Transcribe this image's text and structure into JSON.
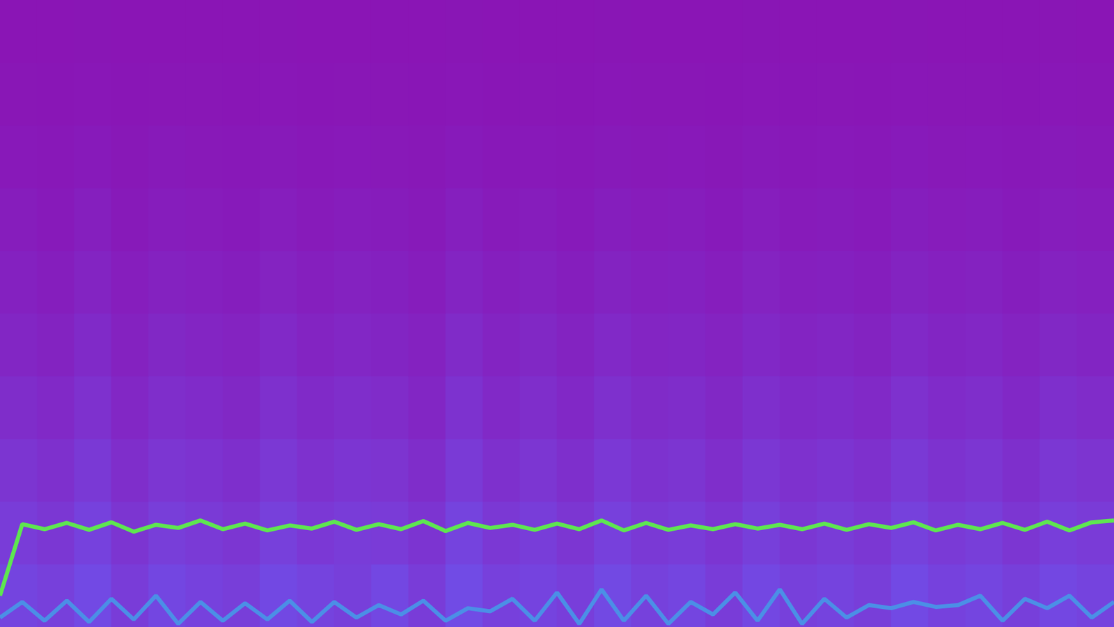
{
  "chart_data": {
    "type": "heatmap",
    "tick_labels": false,
    "grid": false,
    "xlim": [
      0,
      100
    ],
    "ylim": [
      0,
      100
    ],
    "intensity_range": [
      0,
      1
    ],
    "intensity": [
      [
        0.82,
        0.75,
        0.9,
        0.7,
        0.85,
        0.78,
        0.72,
        0.88,
        0.8,
        0.74,
        0.86,
        0.7,
        0.92,
        0.76,
        0.81,
        0.73,
        0.89,
        0.77,
        0.84,
        0.7,
        0.87,
        0.75,
        0.8,
        0.72,
        0.9,
        0.78,
        0.83,
        0.74,
        0.86,
        0.8
      ],
      [
        0.7,
        0.62,
        0.78,
        0.58,
        0.72,
        0.66,
        0.6,
        0.75,
        0.64,
        0.7,
        0.68,
        0.57,
        0.8,
        0.63,
        0.71,
        0.6,
        0.76,
        0.65,
        0.7,
        0.59,
        0.74,
        0.62,
        0.69,
        0.61,
        0.77,
        0.66,
        0.72,
        0.6,
        0.73,
        0.68
      ],
      [
        0.58,
        0.5,
        0.65,
        0.46,
        0.6,
        0.55,
        0.48,
        0.63,
        0.52,
        0.59,
        0.56,
        0.45,
        0.66,
        0.5,
        0.6,
        0.49,
        0.64,
        0.53,
        0.58,
        0.47,
        0.62,
        0.51,
        0.57,
        0.5,
        0.65,
        0.54,
        0.6,
        0.48,
        0.61,
        0.56
      ],
      [
        0.45,
        0.38,
        0.52,
        0.35,
        0.47,
        0.42,
        0.36,
        0.5,
        0.4,
        0.46,
        0.43,
        0.34,
        0.53,
        0.39,
        0.47,
        0.37,
        0.5,
        0.41,
        0.45,
        0.36,
        0.49,
        0.4,
        0.44,
        0.38,
        0.51,
        0.42,
        0.47,
        0.37,
        0.48,
        0.43
      ],
      [
        0.34,
        0.28,
        0.4,
        0.26,
        0.36,
        0.31,
        0.27,
        0.38,
        0.3,
        0.35,
        0.32,
        0.25,
        0.41,
        0.29,
        0.36,
        0.28,
        0.39,
        0.31,
        0.34,
        0.27,
        0.37,
        0.3,
        0.33,
        0.28,
        0.39,
        0.32,
        0.35,
        0.27,
        0.36,
        0.32
      ],
      [
        0.24,
        0.19,
        0.29,
        0.18,
        0.26,
        0.22,
        0.19,
        0.27,
        0.21,
        0.25,
        0.23,
        0.17,
        0.3,
        0.2,
        0.25,
        0.19,
        0.28,
        0.22,
        0.24,
        0.18,
        0.27,
        0.21,
        0.23,
        0.19,
        0.28,
        0.22,
        0.25,
        0.19,
        0.26,
        0.22
      ],
      [
        0.16,
        0.12,
        0.2,
        0.11,
        0.17,
        0.14,
        0.12,
        0.18,
        0.13,
        0.16,
        0.15,
        0.11,
        0.2,
        0.13,
        0.17,
        0.12,
        0.19,
        0.14,
        0.16,
        0.12,
        0.18,
        0.13,
        0.15,
        0.12,
        0.19,
        0.14,
        0.16,
        0.12,
        0.17,
        0.14
      ],
      [
        0.1,
        0.08,
        0.12,
        0.07,
        0.11,
        0.09,
        0.08,
        0.11,
        0.08,
        0.1,
        0.09,
        0.07,
        0.12,
        0.08,
        0.1,
        0.08,
        0.11,
        0.09,
        0.1,
        0.07,
        0.11,
        0.08,
        0.1,
        0.08,
        0.12,
        0.09,
        0.1,
        0.08,
        0.11,
        0.09
      ],
      [
        0.05,
        0.04,
        0.06,
        0.04,
        0.05,
        0.05,
        0.04,
        0.06,
        0.04,
        0.05,
        0.05,
        0.04,
        0.06,
        0.04,
        0.05,
        0.04,
        0.06,
        0.05,
        0.05,
        0.04,
        0.06,
        0.04,
        0.05,
        0.04,
        0.06,
        0.05,
        0.05,
        0.04,
        0.06,
        0.05
      ],
      [
        0.02,
        0.02,
        0.03,
        0.02,
        0.02,
        0.02,
        0.02,
        0.03,
        0.02,
        0.02,
        0.02,
        0.02,
        0.03,
        0.02,
        0.02,
        0.02,
        0.03,
        0.02,
        0.02,
        0.02,
        0.03,
        0.02,
        0.02,
        0.02,
        0.03,
        0.02,
        0.02,
        0.02,
        0.03,
        0.02
      ]
    ],
    "x": [
      0,
      2,
      4,
      6,
      8,
      10,
      12,
      14,
      16,
      18,
      20,
      22,
      24,
      26,
      28,
      30,
      32,
      34,
      36,
      38,
      40,
      42,
      44,
      46,
      48,
      50,
      52,
      54,
      56,
      58,
      60,
      62,
      64,
      66,
      68,
      70,
      72,
      74,
      76,
      78,
      80,
      82,
      84,
      86,
      88,
      90,
      92,
      94,
      96,
      98,
      100
    ],
    "series": [
      {
        "type": "line",
        "color": "#5ee650",
        "marker": "none",
        "line_style": "solid",
        "values": [
          5,
          16.4,
          15.6,
          16.6,
          15.5,
          16.7,
          15.2,
          16.3,
          15.8,
          17.0,
          15.6,
          16.5,
          15.4,
          16.2,
          15.7,
          16.8,
          15.5,
          16.4,
          15.6,
          16.9,
          15.3,
          16.6,
          15.8,
          16.3,
          15.5,
          16.5,
          15.6,
          17.0,
          15.4,
          16.6,
          15.5,
          16.2,
          15.6,
          16.4,
          15.7,
          16.3,
          15.6,
          16.5,
          15.5,
          16.4,
          15.8,
          16.7,
          15.4,
          16.3,
          15.6,
          16.6,
          15.5,
          16.8,
          15.4,
          16.7,
          17.0
        ]
      },
      {
        "type": "line",
        "color": "#4b8fe6",
        "marker": "none",
        "line_style": "solid",
        "values": [
          1.5,
          4.0,
          1.0,
          4.2,
          0.8,
          4.5,
          1.2,
          5.0,
          0.5,
          4.0,
          1.0,
          3.8,
          1.2,
          4.2,
          0.8,
          4.0,
          1.5,
          3.5,
          2.0,
          4.2,
          1.0,
          3.0,
          2.5,
          4.5,
          1.0,
          5.5,
          0.5,
          6.0,
          1.0,
          5.0,
          0.5,
          4.0,
          2.0,
          5.5,
          1.0,
          6.0,
          0.5,
          4.5,
          1.5,
          3.5,
          3.0,
          4.0,
          3.2,
          3.5,
          5.0,
          1.0,
          4.5,
          3.0,
          5.0,
          1.5,
          4.0
        ]
      }
    ]
  }
}
